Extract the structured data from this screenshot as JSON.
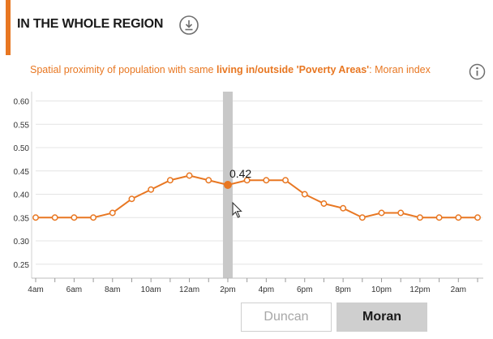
{
  "header": {
    "title": "IN THE WHOLE REGION",
    "accent_color": "#e87722",
    "download_icon": "download-icon"
  },
  "subtitle": {
    "prefix": "Spatial proximity of population with same ",
    "highlight": "living in/outside 'Poverty Areas'",
    "suffix": ": Moran index",
    "info_icon": "info-icon"
  },
  "chart_data": {
    "type": "line",
    "x": [
      "4am",
      "5am",
      "6am",
      "7am",
      "8am",
      "9am",
      "10am",
      "11am",
      "12am",
      "1pm",
      "2pm",
      "3pm",
      "4pm",
      "5pm",
      "6pm",
      "7pm",
      "8pm",
      "9pm",
      "10pm",
      "11pm",
      "12pm",
      "1am",
      "2am",
      "3am"
    ],
    "x_tick_labels": [
      "4am",
      "6am",
      "8am",
      "10am",
      "12am",
      "2pm",
      "4pm",
      "6pm",
      "8pm",
      "10pm",
      "12pm",
      "2am"
    ],
    "y_tick_labels": [
      "0.25",
      "0.30",
      "0.35",
      "0.40",
      "0.45",
      "0.50",
      "0.55",
      "0.60"
    ],
    "series": [
      {
        "values": [
          0.35,
          0.35,
          0.35,
          0.35,
          0.36,
          0.39,
          0.41,
          0.43,
          0.44,
          0.43,
          0.42,
          0.43,
          0.43,
          0.43,
          0.4,
          0.38,
          0.37,
          0.35,
          0.36,
          0.36,
          0.35,
          0.35,
          0.35,
          0.35
        ]
      }
    ],
    "ylim": [
      0.22,
      0.62
    ],
    "highlighted_index": 10,
    "highlight_label": "0.42",
    "line_color": "#e87722",
    "highlight_band_color": "#c8c8c8",
    "grid": true
  },
  "tabs": {
    "duncan": "Duncan",
    "moran": "Moran",
    "selected": "Moran"
  }
}
